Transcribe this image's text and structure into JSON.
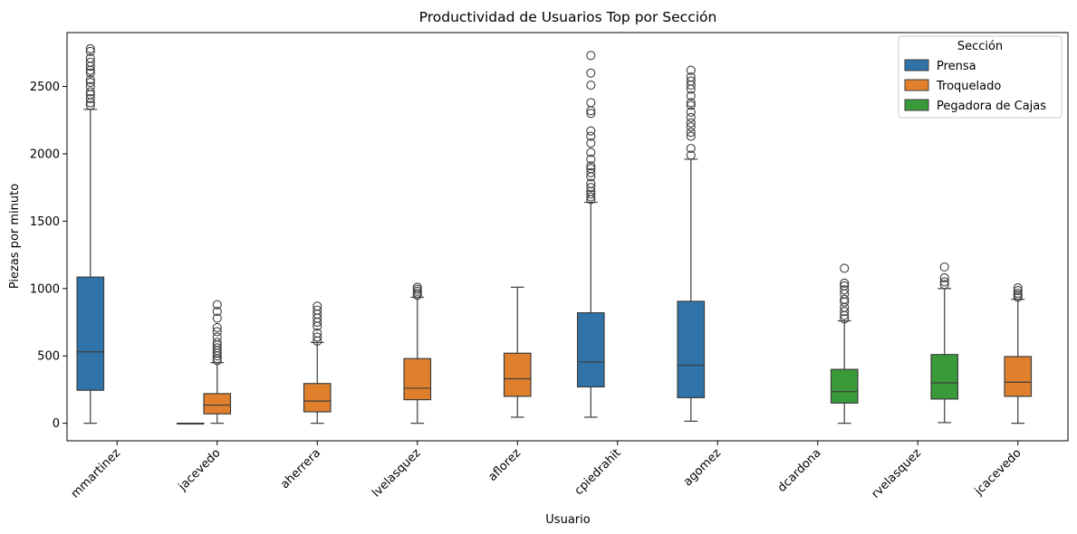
{
  "chart_data": {
    "type": "box",
    "title": "Productividad de Usuarios Top por Sección",
    "xlabel": "Usuario",
    "ylabel": "Piezas por minuto",
    "ylim": [
      -130,
      2900
    ],
    "yticks": [
      0,
      500,
      1000,
      1500,
      2000,
      2500
    ],
    "grid": false,
    "legend": {
      "title": "Sección",
      "placement": "top-right",
      "entries": [
        "Prensa",
        "Troquelado",
        "Pegadora de Cajas"
      ]
    },
    "colors": {
      "Prensa": "#2f73a8",
      "Troquelado": "#e0802c",
      "Pegadora de Cajas": "#3a9a3a"
    },
    "categories": [
      "mmartinez",
      "jacevedo",
      "aherrera",
      "lvelasquez",
      "aflorez",
      "cpiedrahit",
      "agomez",
      "dcardona",
      "rvelasquez",
      "jcacevedo"
    ],
    "series": [
      {
        "name": "Prensa",
        "boxes": [
          {
            "category": "mmartinez",
            "whisker_low": 0,
            "q1": 245,
            "median": 530,
            "q3": 1085,
            "whisker_high": 2330,
            "outliers": [
              2360,
              2380,
              2410,
              2440,
              2460,
              2500,
              2530,
              2550,
              2600,
              2620,
              2650,
              2680,
              2710,
              2760,
              2780
            ]
          },
          {
            "category": "jacevedo",
            "whisker_low": 0,
            "q1": 0,
            "median": 0,
            "q3": 0,
            "whisker_high": 0,
            "outliers": []
          },
          {
            "category": "cpiedrahit",
            "whisker_low": 45,
            "q1": 270,
            "median": 455,
            "q3": 820,
            "whisker_high": 1640,
            "outliers": [
              1660,
              1680,
              1700,
              1720,
              1750,
              1780,
              1830,
              1860,
              1890,
              1910,
              1960,
              2010,
              2080,
              2130,
              2170,
              2300,
              2320,
              2380,
              2510,
              2600,
              2730
            ]
          },
          {
            "category": "agomez",
            "whisker_low": 15,
            "q1": 190,
            "median": 430,
            "q3": 905,
            "whisker_high": 1960,
            "outliers": [
              1990,
              2040,
              2130,
              2160,
              2200,
              2230,
              2270,
              2310,
              2360,
              2380,
              2430,
              2480,
              2510,
              2540,
              2570,
              2620
            ]
          }
        ]
      },
      {
        "name": "Troquelado",
        "boxes": [
          {
            "category": "jacevedo",
            "whisker_low": 0,
            "q1": 70,
            "median": 135,
            "q3": 220,
            "whisker_high": 450,
            "outliers": [
              465,
              480,
              500,
              520,
              540,
              560,
              580,
              600,
              640,
              680,
              710,
              780,
              830,
              880
            ]
          },
          {
            "category": "aherrera",
            "whisker_low": 0,
            "q1": 85,
            "median": 165,
            "q3": 295,
            "whisker_high": 600,
            "outliers": [
              610,
              640,
              670,
              720,
              750,
              780,
              810,
              840,
              870
            ]
          },
          {
            "category": "lvelasquez",
            "whisker_low": 0,
            "q1": 175,
            "median": 260,
            "q3": 480,
            "whisker_high": 935,
            "outliers": [
              950,
              965,
              980,
              995,
              1010
            ]
          },
          {
            "category": "aflorez",
            "whisker_low": 45,
            "q1": 200,
            "median": 330,
            "q3": 520,
            "whisker_high": 1010,
            "outliers": []
          },
          {
            "category": "jcacevedo",
            "whisker_low": 0,
            "q1": 200,
            "median": 305,
            "q3": 495,
            "whisker_high": 920,
            "outliers": [
              935,
              950,
              965,
              985,
              1005
            ]
          }
        ]
      },
      {
        "name": "Pegadora de Cajas",
        "boxes": [
          {
            "category": "dcardona",
            "whisker_low": 0,
            "q1": 150,
            "median": 235,
            "q3": 400,
            "whisker_high": 760,
            "outliers": [
              775,
              800,
              830,
              860,
              900,
              920,
              960,
              990,
              1020,
              1040,
              1150
            ]
          },
          {
            "category": "rvelasquez",
            "whisker_low": 5,
            "q1": 180,
            "median": 300,
            "q3": 510,
            "whisker_high": 1000,
            "outliers": [
              1030,
              1050,
              1080,
              1160
            ]
          }
        ]
      }
    ]
  }
}
